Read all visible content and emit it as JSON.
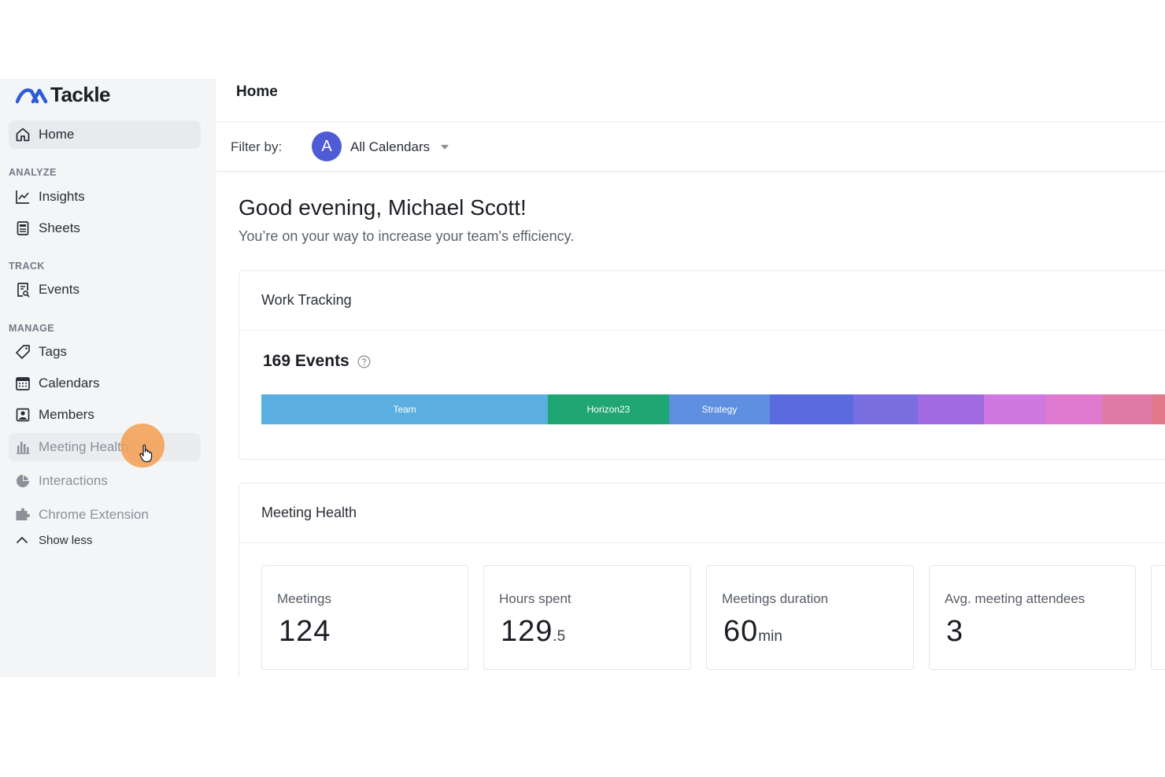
{
  "app": {
    "logo_text": "Tackle",
    "brand_color": "#2e5bd8"
  },
  "sidebar": {
    "home": {
      "label": "Home",
      "icon": "home-icon"
    },
    "sections": {
      "analyze": "ANALYZE",
      "track": "TRACK",
      "manage": "MANAGE"
    },
    "items": {
      "insights": {
        "label": "Insights",
        "icon": "chart-line-icon"
      },
      "sheets": {
        "label": "Sheets",
        "icon": "sheet-icon"
      },
      "events": {
        "label": "Events",
        "icon": "events-icon"
      },
      "tags": {
        "label": "Tags",
        "icon": "tag-icon"
      },
      "calendars": {
        "label": "Calendars",
        "icon": "calendar-icon"
      },
      "members": {
        "label": "Members",
        "icon": "members-icon"
      },
      "meeting_health": {
        "label": "Meeting Health",
        "icon": "bar-chart-icon"
      },
      "interactions": {
        "label": "Interactions",
        "icon": "pie-chart-icon"
      },
      "chrome_extension": {
        "label": "Chrome Extension",
        "icon": "puzzle-icon"
      }
    },
    "show_less": "Show less"
  },
  "header": {
    "title": "Home"
  },
  "filter": {
    "label": "Filter by:",
    "avatar_letter": "A",
    "selected": "All Calendars"
  },
  "greeting": {
    "title": "Good evening, Michael Scott!",
    "subtitle": "You’re on your way to increase your team's efficiency."
  },
  "work_tracking": {
    "title": "Work Tracking",
    "events_label": "169 Events",
    "segments": [
      {
        "label": "Team",
        "share": 0.303,
        "color": "#5aaee0"
      },
      {
        "label": "Horizon23",
        "share": 0.128,
        "color": "#1fa672"
      },
      {
        "label": "Strategy",
        "share": 0.107,
        "color": "#5e8fe0"
      },
      {
        "label": "",
        "share": 0.088,
        "color": "#5a6be0"
      },
      {
        "label": "",
        "share": 0.068,
        "color": "#7a6ee0"
      },
      {
        "label": "",
        "share": 0.07,
        "color": "#a06ae0"
      },
      {
        "label": "",
        "share": 0.065,
        "color": "#cf78e0"
      },
      {
        "label": "",
        "share": 0.06,
        "color": "#e07ad0"
      },
      {
        "label": "",
        "share": 0.053,
        "color": "#e07aa6"
      },
      {
        "label": "",
        "share": 0.058,
        "color": "#e07a8a"
      }
    ]
  },
  "meeting_health": {
    "title": "Meeting Health",
    "stats": [
      {
        "label": "Meetings",
        "value": "124",
        "unit": ""
      },
      {
        "label": "Hours spent",
        "value": "129",
        "unit": ".5"
      },
      {
        "label": "Meetings duration",
        "value": "60",
        "unit": "min"
      },
      {
        "label": "Avg. meeting attendees",
        "value": "3",
        "unit": ""
      }
    ]
  }
}
